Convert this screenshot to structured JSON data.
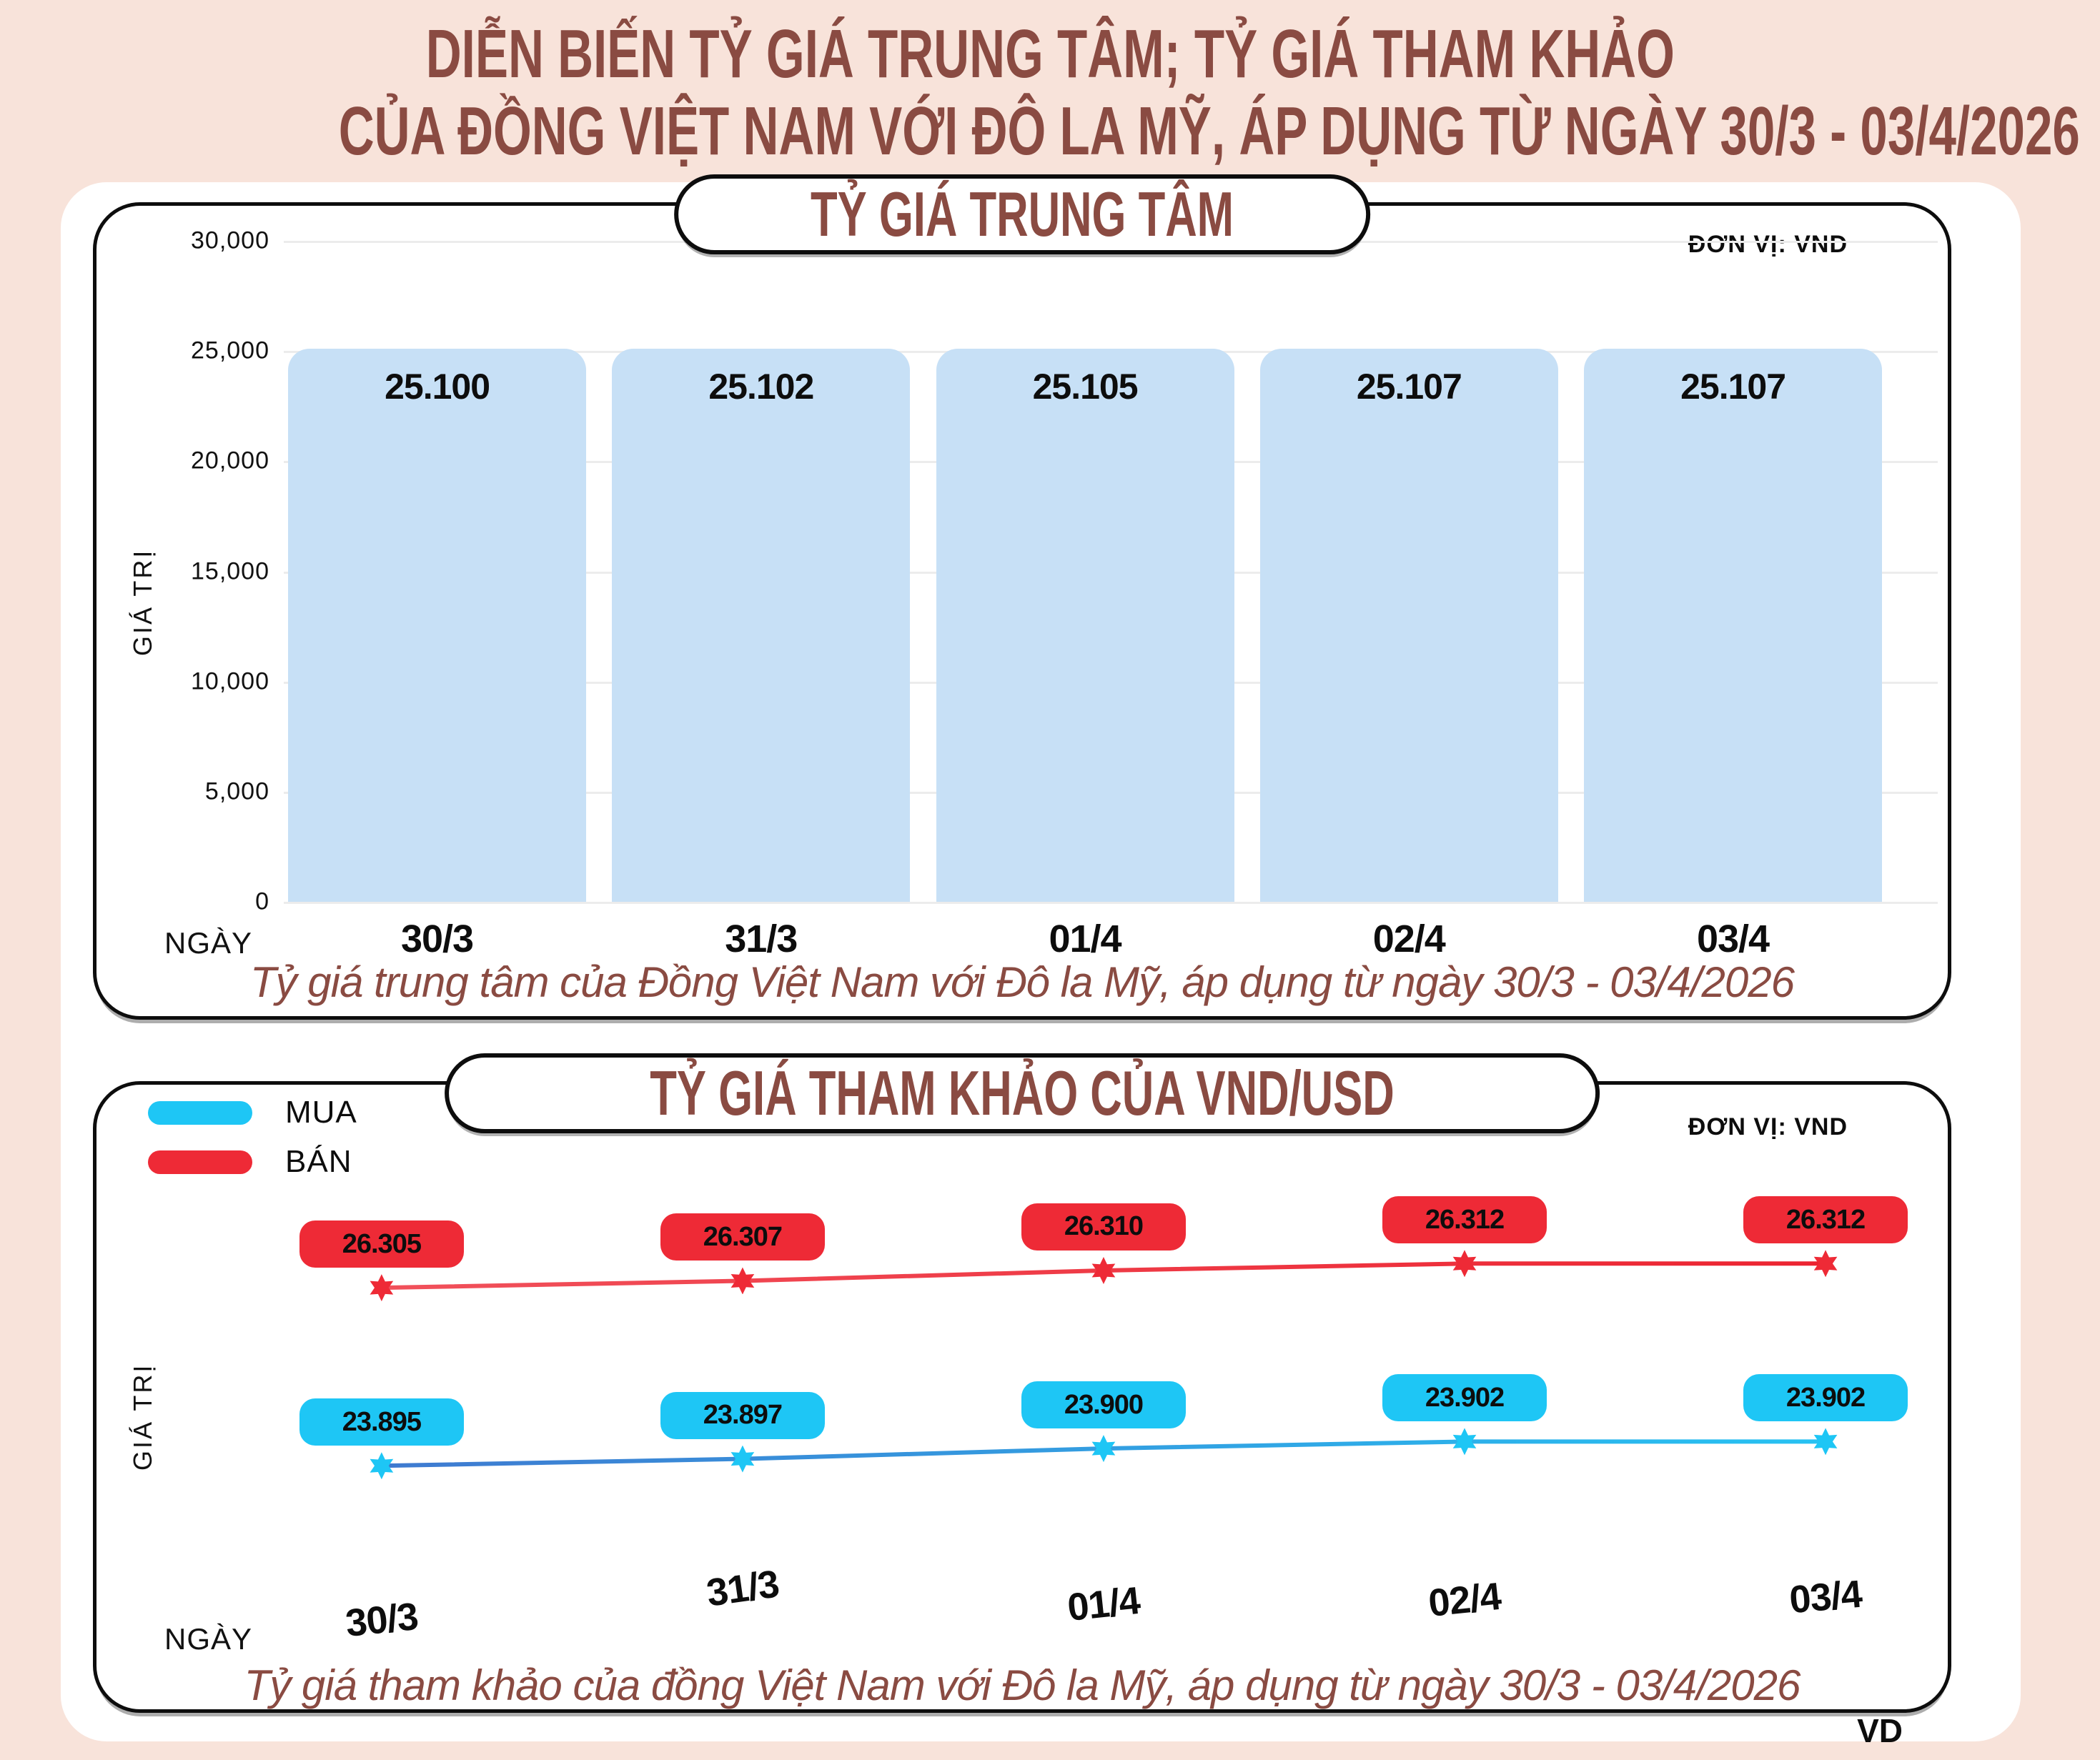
{
  "page_title": {
    "line1": "DIỄN BIẾN TỶ GIÁ TRUNG TÂM; TỶ GIÁ THAM KHẢO",
    "line2": "CỦA ĐỒNG VIỆT NAM VỚI ĐÔ LA MỸ, ÁP DỤNG TỪ NGÀY 30/3 - 03/4/2026"
  },
  "credit": "VD",
  "colors": {
    "background": "#f8e3da",
    "panel": "#ffffff",
    "border": "#0d0d0d",
    "accent_text": "#8a4b42",
    "bar_fill": "#c7e0f6",
    "buy": "#1ec6f5",
    "sell": "#ee2a36",
    "grid": "#ececec"
  },
  "chart_data": [
    {
      "type": "bar",
      "title": "TỶ GIÁ TRUNG TÂM",
      "unit_label": "ĐƠN VỊ: VND",
      "ylabel": "GIÁ TRỊ",
      "xlabel": "NGÀY",
      "categories": [
        "30/3",
        "31/3",
        "01/4",
        "02/4",
        "03/4"
      ],
      "values": [
        25100,
        25102,
        25105,
        25107,
        25107
      ],
      "value_labels": [
        "25.100",
        "25.102",
        "25.105",
        "25.107",
        "25.107"
      ],
      "y_ticks": [
        "30,000",
        "25,000",
        "20,000",
        "15,000",
        "10,000",
        "5,000",
        "0"
      ],
      "ylim": [
        0,
        30000
      ],
      "grid": "horizontal",
      "bar_color": "#c7e0f6",
      "caption": "Tỷ giá trung tâm của Đồng Việt Nam với Đô la Mỹ, áp dụng từ ngày 30/3 - 03/4/2026"
    },
    {
      "type": "line",
      "title": "TỶ GIÁ THAM KHẢO CỦA VND/USD",
      "unit_label": "ĐƠN VỊ: VND",
      "ylabel": "GIÁ TRỊ",
      "xlabel": "NGÀY",
      "categories": [
        "30/3",
        "31/3",
        "01/4",
        "02/4",
        "03/4"
      ],
      "legend_position": "top-left",
      "series": [
        {
          "name": "MUA",
          "color": "#1ec6f5",
          "values": [
            23895,
            23897,
            23900,
            23902,
            23902
          ],
          "value_labels": [
            "23.895",
            "23.897",
            "23.900",
            "23.902",
            "23.902"
          ]
        },
        {
          "name": "BÁN",
          "color": "#ee2a36",
          "values": [
            26305,
            26307,
            26310,
            26312,
            26312
          ],
          "value_labels": [
            "26.305",
            "26.307",
            "26.310",
            "26.312",
            "26.312"
          ]
        }
      ],
      "caption": "Tỷ giá tham khảo của đồng Việt Nam với Đô la Mỹ, áp dụng từ ngày 30/3 - 03/4/2026"
    }
  ]
}
